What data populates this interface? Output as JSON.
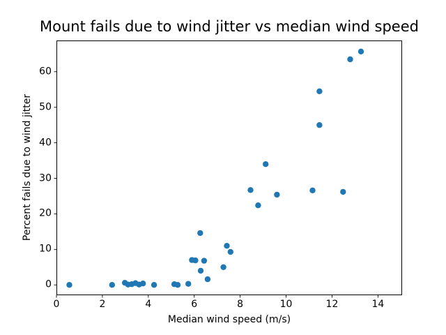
{
  "figure": {
    "background": "#ffffff",
    "text_color": "#000000"
  },
  "chart_data": {
    "type": "scatter",
    "title": "Mount fails due to wind jitter vs median wind speed",
    "xlabel": "Median wind speed (m/s)",
    "ylabel": "Percent fails due to wind jitter",
    "xlim": [
      0,
      15.05
    ],
    "ylim": [
      -2.9,
      68.8
    ],
    "xticks": [
      0,
      2,
      4,
      6,
      8,
      10,
      12,
      14
    ],
    "yticks": [
      0,
      10,
      20,
      30,
      40,
      50,
      60
    ],
    "grid": false,
    "legend": null,
    "marker_color": "#1f77b4",
    "points": [
      {
        "x": 0.56,
        "y": 0.0
      },
      {
        "x": 2.42,
        "y": 0.0
      },
      {
        "x": 2.98,
        "y": 0.6
      },
      {
        "x": 3.12,
        "y": 0.1
      },
      {
        "x": 3.28,
        "y": 0.2
      },
      {
        "x": 3.44,
        "y": 0.5
      },
      {
        "x": 3.6,
        "y": 0.1
      },
      {
        "x": 3.77,
        "y": 0.4
      },
      {
        "x": 4.25,
        "y": 0.0
      },
      {
        "x": 5.13,
        "y": 0.2
      },
      {
        "x": 5.28,
        "y": 0.0
      },
      {
        "x": 5.74,
        "y": 0.3
      },
      {
        "x": 5.9,
        "y": 7.0
      },
      {
        "x": 6.05,
        "y": 6.9
      },
      {
        "x": 6.26,
        "y": 14.6
      },
      {
        "x": 6.28,
        "y": 4.0
      },
      {
        "x": 6.43,
        "y": 6.8
      },
      {
        "x": 6.58,
        "y": 1.6
      },
      {
        "x": 7.27,
        "y": 5.0
      },
      {
        "x": 7.42,
        "y": 11.0
      },
      {
        "x": 7.58,
        "y": 9.3
      },
      {
        "x": 8.45,
        "y": 26.7
      },
      {
        "x": 8.78,
        "y": 22.4
      },
      {
        "x": 9.11,
        "y": 34.0
      },
      {
        "x": 9.6,
        "y": 25.4
      },
      {
        "x": 11.15,
        "y": 26.6
      },
      {
        "x": 11.45,
        "y": 45.0
      },
      {
        "x": 11.45,
        "y": 54.5
      },
      {
        "x": 12.48,
        "y": 26.2
      },
      {
        "x": 12.79,
        "y": 63.5
      },
      {
        "x": 13.26,
        "y": 65.7
      }
    ]
  }
}
